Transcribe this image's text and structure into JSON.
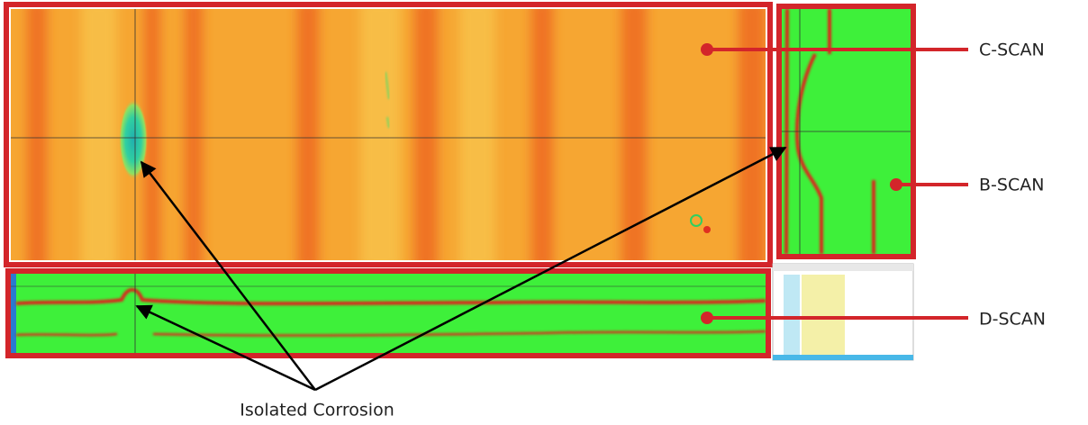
{
  "labels": {
    "c_scan": "C-SCAN",
    "b_scan": "B-SCAN",
    "d_scan": "D-SCAN",
    "callout": "Isolated Corrosion"
  }
}
